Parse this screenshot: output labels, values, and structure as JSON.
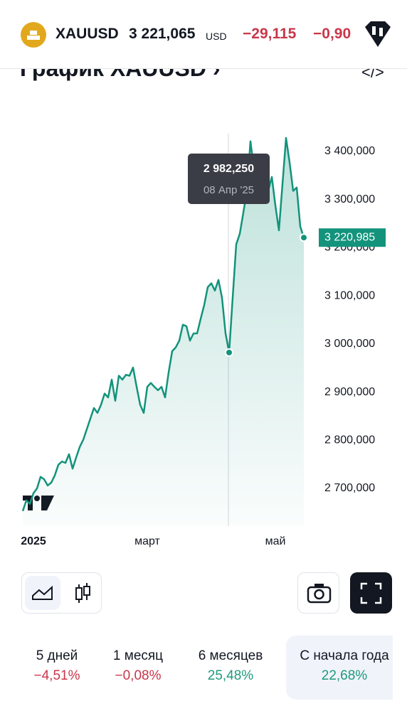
{
  "header": {
    "symbol": "XAUUSD",
    "price": "3 221,065",
    "unit": "USD",
    "change": "−29,115",
    "change_pct": "−0,90"
  },
  "section_title": "График XAUUSD",
  "chart_data": {
    "type": "line",
    "color": "#13937b",
    "categories": [
      null,
      null,
      null,
      null,
      null,
      null,
      null,
      null,
      null,
      null,
      null,
      null,
      null,
      null,
      null,
      null,
      null,
      null,
      null,
      null,
      null,
      null,
      null,
      null,
      null,
      null,
      null,
      null,
      null,
      null,
      null,
      null,
      null,
      null,
      null,
      null,
      null,
      null,
      null,
      null,
      null,
      null,
      null,
      null,
      null,
      null,
      null,
      null,
      null,
      null,
      null,
      null,
      null,
      null,
      null,
      null,
      null,
      null,
      "08 Апр '25",
      null,
      null,
      null,
      null,
      null,
      null,
      null,
      null,
      null,
      null,
      null,
      null,
      null,
      null,
      null,
      null,
      null,
      null,
      null,
      null,
      null
    ],
    "values": [
      2653,
      2675,
      2668,
      2690,
      2700,
      2724,
      2719,
      2706,
      2712,
      2727,
      2749,
      2756,
      2753,
      2771,
      2741,
      2764,
      2786,
      2801,
      2823,
      2845,
      2867,
      2857,
      2874,
      2897,
      2889,
      2926,
      2882,
      2934,
      2926,
      2936,
      2934,
      2951,
      2911,
      2874,
      2857,
      2911,
      2919,
      2911,
      2904,
      2911,
      2889,
      2941,
      2985,
      2993,
      3007,
      3040,
      3037,
      3007,
      3022,
      3022,
      3052,
      3081,
      3118,
      3126,
      3111,
      3133,
      3096,
      3022,
      2982.25,
      3096,
      3207,
      3229,
      3273,
      3318,
      3421,
      3362,
      3332,
      3295,
      3362,
      3318,
      3347,
      3288,
      3236,
      3332,
      3428,
      3377,
      3318,
      3325,
      3244,
      3220.985
    ],
    "value_labels": [
      null,
      null,
      null,
      null,
      null,
      null,
      null,
      null,
      null,
      null,
      null,
      null,
      null,
      null,
      null,
      null,
      null,
      null,
      null,
      null,
      null,
      null,
      null,
      null,
      null,
      null,
      null,
      null,
      null,
      null,
      null,
      null,
      null,
      null,
      null,
      null,
      null,
      null,
      null,
      null,
      null,
      null,
      null,
      null,
      null,
      null,
      null,
      null,
      null,
      null,
      null,
      null,
      null,
      null,
      null,
      null,
      null,
      null,
      "2 982,250",
      null,
      null,
      null,
      null,
      null,
      null,
      null,
      null,
      null,
      null,
      null,
      null,
      null,
      null,
      null,
      null,
      null,
      null,
      null,
      null,
      "3 220,985"
    ],
    "xticks": [
      {
        "value": 3,
        "label": "2025"
      },
      {
        "value": 35,
        "label": "март"
      },
      {
        "value": 71,
        "label": "май"
      }
    ],
    "ylim": [
      2622,
      3435
    ],
    "yticks": [
      {
        "value": 2700,
        "label": "2 700,000"
      },
      {
        "value": 2800,
        "label": "2 800,000"
      },
      {
        "value": 2900,
        "label": "2 900,000"
      },
      {
        "value": 3000,
        "label": "3 000,000"
      },
      {
        "value": 3100,
        "label": "3 100,000"
      },
      {
        "value": 3200,
        "label": "3 200,000"
      },
      {
        "value": 3300,
        "label": "3 300,000"
      },
      {
        "value": 3400,
        "label": "3 400,000"
      }
    ]
  },
  "periods": [
    {
      "label": "5 дней",
      "change": "−4,51%"
    },
    {
      "label": "1 месяц",
      "change": "−0,08%"
    },
    {
      "label": "6 месяцев",
      "change": "25,48%"
    },
    {
      "label": "С начала года",
      "change": "22,68%"
    }
  ]
}
